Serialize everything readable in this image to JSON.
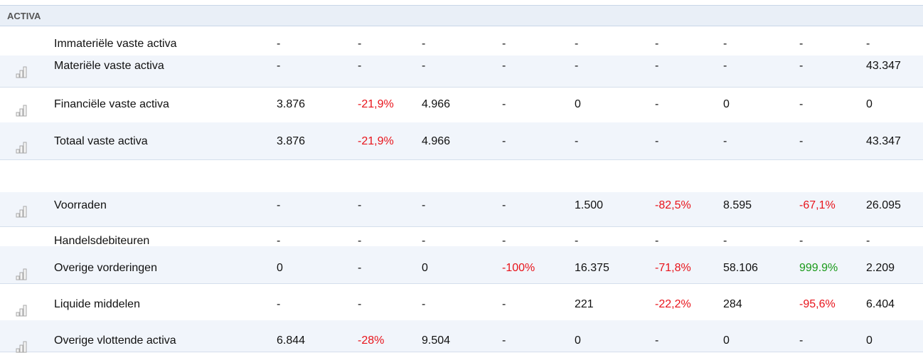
{
  "header": {
    "title": "ACTIVA"
  },
  "rows": [
    {
      "label": "Immateriële vaste activa",
      "cells": [
        "-",
        "-",
        "-",
        "-",
        "-",
        "-",
        "-",
        "-",
        "-"
      ]
    },
    {
      "label": "Materiële vaste activa",
      "chart": true,
      "cells": [
        "-",
        "-",
        "-",
        "-",
        "-",
        "-",
        "-",
        "-",
        "43.347"
      ]
    },
    {
      "label": "Financiële vaste activa",
      "chart": true,
      "cells": [
        "3.876",
        "-21,9%",
        "4.966",
        "-",
        "0",
        "-",
        "0",
        "-",
        "0"
      ]
    },
    {
      "label": "Totaal vaste activa",
      "chart": true,
      "cells": [
        "3.876",
        "-21,9%",
        "4.966",
        "-",
        "-",
        "-",
        "-",
        "-",
        "43.347"
      ]
    },
    {},
    {
      "label": "Voorraden",
      "chart": true,
      "cells": [
        "-",
        "-",
        "-",
        "-",
        "1.500",
        "-82,5%",
        "8.595",
        "-67,1%",
        "26.095"
      ]
    },
    {
      "label": "Handelsdebiteuren",
      "cells": [
        "-",
        "-",
        "-",
        "-",
        "-",
        "-",
        "-",
        "-",
        "-"
      ]
    },
    {
      "label": "Overige vorderingen",
      "chart": true,
      "cells": [
        "0",
        "-",
        "0",
        "-100%",
        "16.375",
        "-71,8%",
        "58.106",
        "999.9%",
        "2.209"
      ]
    },
    {
      "label": "Liquide middelen",
      "chart": true,
      "cells": [
        "-",
        "-",
        "-",
        "-",
        "221",
        "-22,2%",
        "284",
        "-95,6%",
        "6.404"
      ]
    },
    {
      "label": "Overige vlottende activa",
      "chart": true,
      "cells": [
        "6.844",
        "-28%",
        "9.504",
        "-",
        "0",
        "-",
        "0",
        "-",
        "0"
      ]
    }
  ]
}
